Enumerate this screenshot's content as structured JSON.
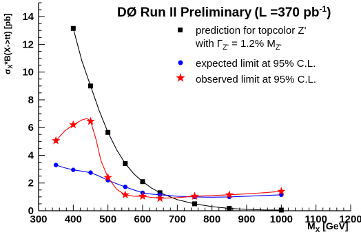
{
  "chart_data": {
    "type": "scatter",
    "title": "DØ Run II Preliminary",
    "title_suffix_prefix": "(L =370 pb",
    "title_suffix_exponent": "-1",
    "title_suffix_end": ")",
    "xlabel_main": "M",
    "xlabel_sub": "X",
    "xlabel_unit": " [GeV]",
    "ylabel_parts": {
      "sigma": "σ",
      "sub_x": "X",
      "rest": "*B(X->tt)  [pb]"
    },
    "xlim": [
      300,
      1200
    ],
    "ylim": [
      0,
      15
    ],
    "x_ticks": [
      300,
      400,
      500,
      600,
      700,
      800,
      900,
      1000,
      1100,
      1200
    ],
    "y_ticks": [
      0,
      2,
      4,
      6,
      8,
      10,
      12,
      14
    ],
    "grid": false,
    "legend_position": "top-right",
    "legend": [
      {
        "series": "prediction",
        "line1": "prediction for topcolor Z'",
        "line2_prefix": "with Γ",
        "line2_sub": "Z'",
        "line2_mid": " = 1.2% M",
        "line2_sub2": "Z'"
      },
      {
        "series": "expected",
        "line1": "expected limit at 95% C.L."
      },
      {
        "series": "observed",
        "line1": "observed limit at 95% C.L."
      }
    ],
    "series": [
      {
        "name": "prediction for topcolor Z'",
        "key": "prediction",
        "marker": "square",
        "color": "#000000",
        "x": [
          400,
          450,
          500,
          550,
          600,
          650,
          750,
          850,
          1000
        ],
        "y": [
          13.15,
          9.0,
          5.65,
          3.4,
          2.1,
          1.3,
          0.5,
          0.17,
          0.05
        ],
        "curve_x": [
          400,
          425,
          450,
          475,
          500,
          525,
          550,
          575,
          600,
          625,
          650,
          700,
          750,
          800,
          850,
          900,
          950,
          1000
        ],
        "curve_y": [
          13.15,
          10.8,
          9.0,
          7.2,
          5.65,
          4.4,
          3.4,
          2.65,
          2.1,
          1.65,
          1.3,
          0.8,
          0.5,
          0.3,
          0.17,
          0.1,
          0.06,
          0.05
        ]
      },
      {
        "name": "expected limit at 95% C.L.",
        "key": "expected",
        "marker": "circle",
        "color": "#0000ff",
        "x": [
          350,
          400,
          450,
          500,
          550,
          600,
          650,
          750,
          850,
          1000
        ],
        "y": [
          3.3,
          2.95,
          2.75,
          2.2,
          1.72,
          1.3,
          1.15,
          1.0,
          1.0,
          1.15
        ],
        "curve_x": [
          350,
          375,
          400,
          425,
          450,
          475,
          500,
          525,
          550,
          575,
          600,
          625,
          650,
          700,
          750,
          800,
          850,
          900,
          950,
          1000
        ],
        "curve_y": [
          3.3,
          3.1,
          2.95,
          2.85,
          2.75,
          2.5,
          2.2,
          1.95,
          1.72,
          1.5,
          1.3,
          1.2,
          1.15,
          1.05,
          1.0,
          0.98,
          1.0,
          1.05,
          1.1,
          1.15
        ]
      },
      {
        "name": "observed limit at 95% C.L.",
        "key": "observed",
        "marker": "star",
        "color": "#ff0000",
        "x": [
          350,
          400,
          450,
          500,
          550,
          600,
          650,
          750,
          850,
          1000
        ],
        "y": [
          5.05,
          6.2,
          6.45,
          2.4,
          1.15,
          1.05,
          0.9,
          1.05,
          1.15,
          1.4
        ],
        "curve_x": [
          350,
          375,
          400,
          425,
          440,
          450,
          465,
          480,
          500,
          525,
          550,
          575,
          600,
          625,
          650,
          700,
          750,
          800,
          850,
          900,
          950,
          1000
        ],
        "curve_y": [
          5.05,
          5.75,
          6.2,
          6.55,
          6.65,
          6.45,
          5.2,
          3.6,
          2.4,
          1.55,
          1.15,
          1.05,
          1.05,
          0.97,
          0.9,
          0.95,
          1.05,
          1.1,
          1.15,
          1.22,
          1.3,
          1.4
        ]
      }
    ]
  }
}
